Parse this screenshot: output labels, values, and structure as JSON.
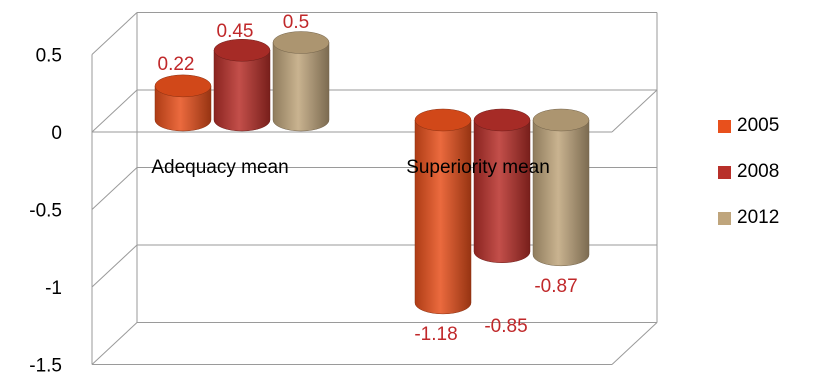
{
  "chart_data": {
    "type": "bar",
    "style": "3d-cylinder",
    "categories": [
      "Adequacy mean",
      "Superiority  mean"
    ],
    "series": [
      {
        "name": "2005",
        "values": [
          0.22,
          -1.18
        ],
        "color": "#e8501c"
      },
      {
        "name": "2008",
        "values": [
          0.45,
          -0.85
        ],
        "color": "#b8302a"
      },
      {
        "name": "2012",
        "values": [
          0.5,
          -0.87
        ],
        "color": "#bfa57c"
      }
    ],
    "data_labels": [
      [
        "0.22",
        "0.45",
        "0.5"
      ],
      [
        "-1.18",
        "-0.85",
        "-0.87"
      ]
    ],
    "y_ticks": [
      "0.5",
      "0",
      "-0.5",
      "-1",
      "-1.5"
    ],
    "ylim": [
      -1.5,
      0.5
    ],
    "grid": true,
    "legend_position": "right",
    "label_color": "#c0282a"
  }
}
